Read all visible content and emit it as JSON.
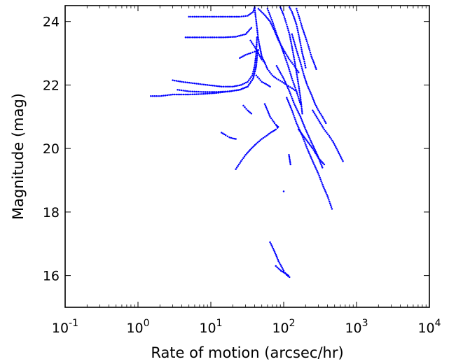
{
  "chart_data": {
    "type": "scatter",
    "title": "",
    "xlabel": "Rate of motion (arcsec/hr)",
    "ylabel": "Magnitude (mag)",
    "xscale": "log",
    "xlim": [
      0.1,
      10000
    ],
    "ylim": [
      15.0,
      24.5
    ],
    "x_ticks": [
      {
        "value": 0.1,
        "base": "10",
        "exp": "-1"
      },
      {
        "value": 1,
        "base": "10",
        "exp": "0"
      },
      {
        "value": 10,
        "base": "10",
        "exp": "1"
      },
      {
        "value": 100,
        "base": "10",
        "exp": "2"
      },
      {
        "value": 1000,
        "base": "10",
        "exp": "3"
      },
      {
        "value": 10000,
        "base": "10",
        "exp": "4"
      }
    ],
    "y_ticks": [
      16,
      18,
      20,
      22,
      24
    ],
    "grid": false,
    "legend": "none",
    "marker_color": "#0000ff",
    "series": [
      {
        "x": [
          5,
          8,
          12,
          18,
          25,
          32,
          38,
          40
        ],
        "y": [
          24.15,
          24.15,
          24.15,
          24.15,
          24.15,
          24.18,
          24.3,
          24.45
        ]
      },
      {
        "x": [
          4.5,
          7,
          10,
          15,
          22,
          30,
          36
        ],
        "y": [
          23.5,
          23.5,
          23.5,
          23.5,
          23.52,
          23.6,
          23.8
        ]
      },
      {
        "x": [
          3,
          4,
          6,
          9,
          14,
          20,
          26,
          32,
          37,
          40,
          42,
          43
        ],
        "y": [
          22.15,
          22.1,
          22.05,
          22.0,
          21.95,
          21.95,
          22.0,
          22.1,
          22.3,
          22.6,
          23.0,
          23.5
        ]
      },
      {
        "x": [
          3.5,
          5,
          8,
          12,
          18,
          25,
          32,
          38,
          42,
          44
        ],
        "y": [
          21.85,
          21.8,
          21.78,
          21.78,
          21.8,
          21.85,
          21.95,
          22.2,
          22.6,
          23.1
        ]
      },
      {
        "x": [
          1.5,
          2,
          3,
          5,
          8,
          12,
          18,
          25,
          32,
          38,
          42
        ],
        "y": [
          21.65,
          21.65,
          21.7,
          21.7,
          21.72,
          21.75,
          21.8,
          21.85,
          21.95,
          22.2,
          22.6
        ]
      },
      {
        "x": [
          40,
          42,
          44,
          46,
          48,
          50,
          55,
          60,
          70,
          80,
          95,
          110,
          130,
          150
        ],
        "y": [
          24.4,
          24.0,
          23.6,
          23.3,
          23.1,
          22.9,
          22.7,
          22.5,
          22.3,
          22.2,
          22.1,
          22.0,
          21.9,
          21.8
        ]
      },
      {
        "x": [
          45,
          55,
          65,
          75,
          85,
          100,
          120,
          140,
          160
        ],
        "y": [
          24.4,
          24.2,
          24.0,
          23.7,
          23.4,
          23.1,
          22.8,
          22.6,
          22.4
        ]
      },
      {
        "x": [
          60,
          70,
          80,
          90,
          100,
          115,
          130,
          150,
          170
        ],
        "y": [
          24.4,
          24.0,
          23.6,
          23.3,
          23.0,
          22.6,
          22.2,
          21.8,
          21.4
        ]
      },
      {
        "x": [
          90,
          100,
          110,
          120,
          130,
          140,
          150,
          160,
          170,
          180
        ],
        "y": [
          24.45,
          24.2,
          23.9,
          23.6,
          23.2,
          22.8,
          22.4,
          22.0,
          21.6,
          21.1
        ]
      },
      {
        "x": [
          120,
          130,
          140,
          150,
          160,
          170,
          180,
          190,
          200
        ],
        "y": [
          24.45,
          24.3,
          24.1,
          23.9,
          23.6,
          23.3,
          23.0,
          22.8,
          22.55
        ]
      },
      {
        "x": [
          150,
          165,
          180,
          200,
          220,
          240,
          260,
          280
        ],
        "y": [
          24.4,
          24.1,
          23.8,
          23.5,
          23.2,
          22.9,
          22.7,
          22.5
        ]
      },
      {
        "x": [
          130,
          150,
          170,
          190,
          210,
          240,
          270,
          300,
          340,
          380
        ],
        "y": [
          23.6,
          23.1,
          22.7,
          22.3,
          22.0,
          21.7,
          21.4,
          21.2,
          21.0,
          20.8
        ]
      },
      {
        "x": [
          80,
          100,
          120,
          140,
          170,
          200,
          240,
          290,
          340
        ],
        "y": [
          22.6,
          22.2,
          21.8,
          21.4,
          21.0,
          20.6,
          20.2,
          19.8,
          19.4
        ]
      },
      {
        "x": [
          110,
          130,
          150,
          180,
          210,
          250,
          300,
          350,
          400,
          460
        ],
        "y": [
          21.6,
          21.2,
          20.8,
          20.4,
          20.0,
          19.6,
          19.2,
          18.8,
          18.5,
          18.1
        ]
      },
      {
        "x": [
          250,
          300,
          360,
          420,
          480,
          560,
          650
        ],
        "y": [
          21.2,
          20.9,
          20.6,
          20.4,
          20.2,
          19.9,
          19.6
        ]
      },
      {
        "x": [
          160,
          200,
          250,
          300,
          360
        ],
        "y": [
          20.6,
          20.3,
          20.0,
          19.7,
          19.5
        ]
      },
      {
        "x": [
          22,
          26,
          30,
          36,
          42,
          50,
          58,
          66,
          72,
          78,
          82
        ],
        "y": [
          19.35,
          19.6,
          19.8,
          20.0,
          20.15,
          20.3,
          20.4,
          20.5,
          20.55,
          20.6,
          20.65
        ]
      },
      {
        "x": [
          55,
          60,
          65,
          70,
          75,
          78,
          80,
          82,
          84
        ],
        "y": [
          21.4,
          21.2,
          21.0,
          20.9,
          20.8,
          20.75,
          20.72,
          20.7,
          20.68
        ]
      },
      {
        "x": [
          14,
          16,
          18,
          20,
          22
        ],
        "y": [
          20.5,
          20.42,
          20.35,
          20.32,
          20.3
        ]
      },
      {
        "x": [
          28,
          32,
          36
        ],
        "y": [
          21.35,
          21.2,
          21.1
        ]
      },
      {
        "x": [
          118,
          120,
          122,
          124
        ],
        "y": [
          19.8,
          19.7,
          19.6,
          19.5
        ]
      },
      {
        "x": [
          100
        ],
        "y": [
          18.65
        ]
      },
      {
        "x": [
          65,
          70,
          75,
          80,
          85,
          90,
          95,
          100,
          105,
          110,
          115,
          120
        ],
        "y": [
          17.05,
          16.9,
          16.75,
          16.6,
          16.45,
          16.35,
          16.25,
          16.15,
          16.08,
          16.02,
          15.98,
          15.95
        ]
      },
      {
        "x": [
          78,
          85,
          92,
          100,
          108,
          116
        ],
        "y": [
          16.3,
          16.22,
          16.15,
          16.1,
          16.05,
          16.0
        ]
      },
      {
        "x": [
          25,
          30,
          35,
          40,
          45
        ],
        "y": [
          22.85,
          22.95,
          23.0,
          23.05,
          23.1
        ]
      },
      {
        "x": [
          42,
          46,
          50,
          55,
          60,
          65
        ],
        "y": [
          22.3,
          22.2,
          22.1,
          22.05,
          22.0,
          21.95
        ]
      },
      {
        "x": [
          35,
          40,
          45,
          50,
          55
        ],
        "y": [
          23.4,
          23.2,
          23.0,
          22.8,
          22.7
        ]
      }
    ]
  }
}
